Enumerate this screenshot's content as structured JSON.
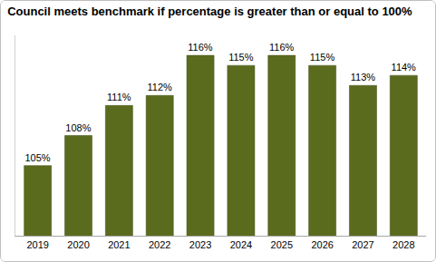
{
  "chart_data": {
    "type": "bar",
    "title": "Council meets benchmark if percentage is greater than or equal to 100%",
    "categories": [
      "2019",
      "2020",
      "2021",
      "2022",
      "2023",
      "2024",
      "2025",
      "2026",
      "2027",
      "2028"
    ],
    "values": [
      105,
      108,
      111,
      112,
      116,
      115,
      116,
      115,
      113,
      114
    ],
    "value_labels": [
      "105%",
      "108%",
      "111%",
      "112%",
      "116%",
      "115%",
      "116%",
      "115%",
      "113%",
      "114%"
    ],
    "color": "#5b6b1e",
    "ylim": [
      98,
      118
    ],
    "grid": false,
    "data_labels": true,
    "tick_labels": "x"
  }
}
